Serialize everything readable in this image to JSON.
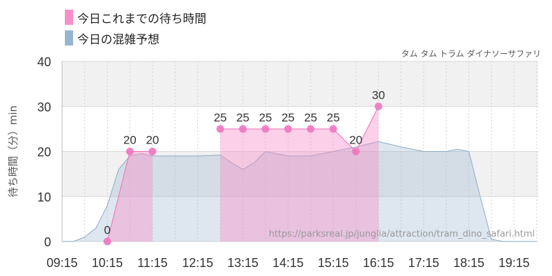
{
  "legend": [
    {
      "label": "今日これまでの待ち時間",
      "color": "#f78fc9"
    },
    {
      "label": "今日の混雑予想",
      "color": "#98b5cf"
    }
  ],
  "attraction_name": "タム タム トラム ダイナソーサファリ",
  "source_url": "https://parksreal.jp/junglia/attraction/tram_dino_safari.html",
  "chart_data": {
    "type": "area",
    "ylabel": "待ち時間（分）min",
    "ylim": [
      0,
      40
    ],
    "yticks": [
      0,
      10,
      20,
      30,
      40
    ],
    "xticks": [
      "09:15",
      "10:15",
      "11:15",
      "12:15",
      "13:15",
      "14:15",
      "15:15",
      "16:15",
      "17:15",
      "18:15",
      "19:15"
    ],
    "x_start": "09:15",
    "series": [
      {
        "name": "今日これまでの待ち時間",
        "color": "#f78fc9",
        "points": [
          {
            "time": "10:15",
            "value": 0,
            "label": "0"
          },
          {
            "time": "10:45",
            "value": 20,
            "label": "20"
          },
          {
            "time": "11:15",
            "value": 20,
            "label": "20"
          },
          {
            "time": "12:45",
            "value": null
          },
          {
            "time": "12:45",
            "value": 25,
            "label": "25"
          },
          {
            "time": "13:15",
            "value": 25,
            "label": "25"
          },
          {
            "time": "13:45",
            "value": 25,
            "label": "25"
          },
          {
            "time": "14:15",
            "value": 25,
            "label": "25"
          },
          {
            "time": "14:45",
            "value": 25,
            "label": "25"
          },
          {
            "time": "15:15",
            "value": 25,
            "label": "25"
          },
          {
            "time": "15:45",
            "value": 20,
            "label": "20"
          },
          {
            "time": "16:15",
            "value": 30,
            "label": "30"
          }
        ]
      },
      {
        "name": "今日の混雑予想",
        "color": "#98b5cf",
        "points": [
          {
            "time": "09:15",
            "value": 0
          },
          {
            "time": "09:30",
            "value": 0
          },
          {
            "time": "09:45",
            "value": 1
          },
          {
            "time": "10:00",
            "value": 3
          },
          {
            "time": "10:15",
            "value": 8
          },
          {
            "time": "10:30",
            "value": 16
          },
          {
            "time": "10:45",
            "value": 19
          },
          {
            "time": "11:00",
            "value": 19.5
          },
          {
            "time": "11:15",
            "value": 19
          },
          {
            "time": "11:45",
            "value": 19
          },
          {
            "time": "12:15",
            "value": 19
          },
          {
            "time": "12:45",
            "value": 19.2
          },
          {
            "time": "13:00",
            "value": 17.5
          },
          {
            "time": "13:15",
            "value": 16
          },
          {
            "time": "13:30",
            "value": 17.5
          },
          {
            "time": "13:45",
            "value": 20
          },
          {
            "time": "14:15",
            "value": 19
          },
          {
            "time": "14:45",
            "value": 19
          },
          {
            "time": "15:15",
            "value": 20
          },
          {
            "time": "15:45",
            "value": 21
          },
          {
            "time": "16:15",
            "value": 22.2
          },
          {
            "time": "16:45",
            "value": 21
          },
          {
            "time": "17:15",
            "value": 20
          },
          {
            "time": "17:45",
            "value": 20
          },
          {
            "time": "18:00",
            "value": 20.5
          },
          {
            "time": "18:15",
            "value": 20
          },
          {
            "time": "18:30",
            "value": 10
          },
          {
            "time": "18:45",
            "value": 0.5
          },
          {
            "time": "19:00",
            "value": 0
          },
          {
            "time": "19:15",
            "value": 0
          },
          {
            "time": "19:45",
            "value": 0
          }
        ]
      }
    ],
    "grid": true,
    "legend_position": "top-left"
  }
}
